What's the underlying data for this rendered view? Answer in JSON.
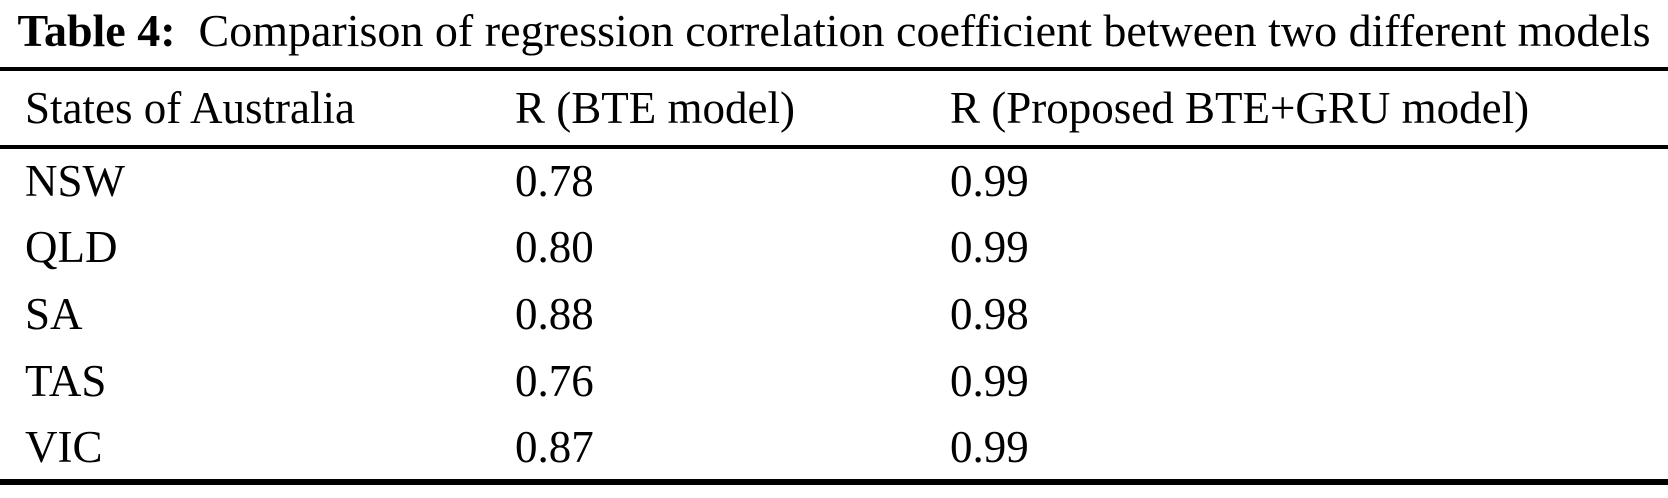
{
  "caption": {
    "label": "Table 4:",
    "text": "Comparison of regression correlation coefficient between two different models"
  },
  "table": {
    "columns": {
      "state": "States of Australia",
      "r_bte": "R (BTE model)",
      "r_bte_gru": "R (Proposed BTE+GRU model)"
    },
    "rows": [
      {
        "state": "NSW",
        "r_bte": "0.78",
        "r_bte_gru": "0.99"
      },
      {
        "state": "QLD",
        "r_bte": "0.80",
        "r_bte_gru": "0.99"
      },
      {
        "state": "SA",
        "r_bte": "0.88",
        "r_bte_gru": "0.98"
      },
      {
        "state": "TAS",
        "r_bte": "0.76",
        "r_bte_gru": "0.99"
      },
      {
        "state": "VIC",
        "r_bte": "0.87",
        "r_bte_gru": "0.99"
      }
    ]
  },
  "colors": {
    "text": "#000000",
    "background": "#ffffff",
    "rule": "#000000"
  }
}
